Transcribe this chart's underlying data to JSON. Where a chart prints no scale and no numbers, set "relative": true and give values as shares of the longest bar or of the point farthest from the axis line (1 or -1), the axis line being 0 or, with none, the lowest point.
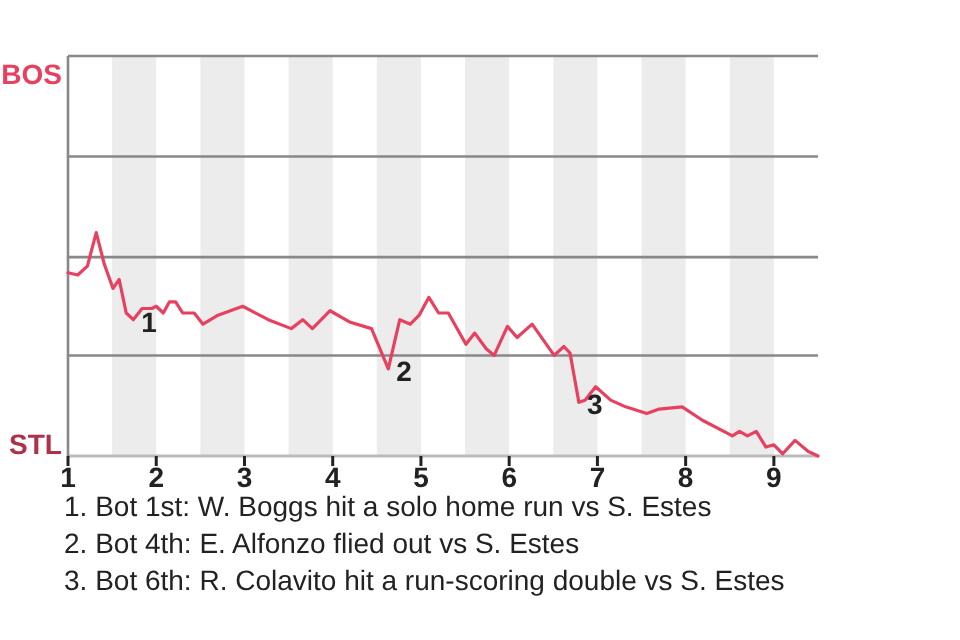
{
  "chart_data": {
    "type": "line",
    "relative": true,
    "x": [
      1,
      1.11,
      1.22,
      1.32,
      1.41,
      1.51,
      1.58,
      1.66,
      1.74,
      1.84,
      1.95,
      2,
      2.08,
      2.15,
      2.22,
      2.3,
      2.43,
      2.53,
      2.7,
      2.98,
      3.27,
      3.53,
      3.66,
      3.77,
      3.97,
      4.19,
      4.44,
      4.63,
      4.76,
      4.88,
      4.98,
      5.09,
      5.2,
      5.31,
      5.51,
      5.61,
      5.74,
      5.83,
      5.98,
      6.09,
      6.26,
      6.51,
      6.62,
      6.69,
      6.79,
      6.86,
      6.98,
      7.15,
      7.32,
      7.56,
      7.7,
      7.96,
      8.19,
      8.53,
      8.61,
      8.7,
      8.8,
      8.91,
      9,
      9.1,
      9.24,
      9.39,
      9.5
    ],
    "series": [
      {
        "color": "#e8415f",
        "values": [
          0.82,
          0.81,
          0.85,
          1,
          0.86,
          0.75,
          0.79,
          0.64,
          0.61,
          0.66,
          0.66,
          0.67,
          0.64,
          0.69,
          0.69,
          0.64,
          0.64,
          0.59,
          0.63,
          0.67,
          0.61,
          0.57,
          0.61,
          0.57,
          0.65,
          0.6,
          0.57,
          0.39,
          0.61,
          0.59,
          0.63,
          0.71,
          0.64,
          0.64,
          0.5,
          0.55,
          0.48,
          0.45,
          0.58,
          0.53,
          0.59,
          0.45,
          0.49,
          0.46,
          0.24,
          0.25,
          0.31,
          0.25,
          0.22,
          0.19,
          0.21,
          0.22,
          0.16,
          0.09,
          0.11,
          0.09,
          0.11,
          0.04,
          0.05,
          0.01,
          0.07,
          0.02,
          0
        ]
      }
    ],
    "xlim": [
      1,
      9.5
    ],
    "xticks": [
      1,
      2,
      3,
      4,
      5,
      6,
      7,
      8,
      9
    ],
    "marker": "none",
    "line_style": "solid",
    "ref_lines": [
      {
        "axis": "y",
        "value": 0.45,
        "color": "#888888"
      },
      {
        "axis": "y",
        "value": 0.89,
        "color": "#888888"
      },
      {
        "axis": "y",
        "value": 1.34,
        "color": "#888888"
      },
      {
        "axis": "y",
        "value": 1.79,
        "color": "#888888"
      }
    ],
    "bands": [
      {
        "axis": "x",
        "from": 1.5,
        "to": 2,
        "color": "#ececec"
      },
      {
        "axis": "x",
        "from": 2.5,
        "to": 3,
        "color": "#ececec"
      },
      {
        "axis": "x",
        "from": 3.5,
        "to": 4,
        "color": "#ececec"
      },
      {
        "axis": "x",
        "from": 4.5,
        "to": 5,
        "color": "#ececec"
      },
      {
        "axis": "x",
        "from": 5.5,
        "to": 6,
        "color": "#ececec"
      },
      {
        "axis": "x",
        "from": 6.5,
        "to": 7,
        "color": "#ececec"
      },
      {
        "axis": "x",
        "from": 7.5,
        "to": 8,
        "color": "#ececec"
      },
      {
        "axis": "x",
        "from": 8.5,
        "to": 9,
        "color": "#ececec"
      }
    ],
    "annotations": [
      "BOS",
      "STL",
      {
        "text": "1",
        "x": 1.74,
        "y": 0.61
      },
      {
        "text": "2",
        "x": 4.63,
        "y": 0.39
      },
      {
        "text": "3",
        "x": 6.79,
        "y": 0.24
      },
      "1. Bot 1st: W. Boggs hit a solo home run vs S. Estes",
      "2. Bot 4th: E. Alfonzo flied out vs S. Estes",
      "3. Bot 6th: R. Colavito hit a run-scoring double vs S. Estes"
    ]
  }
}
